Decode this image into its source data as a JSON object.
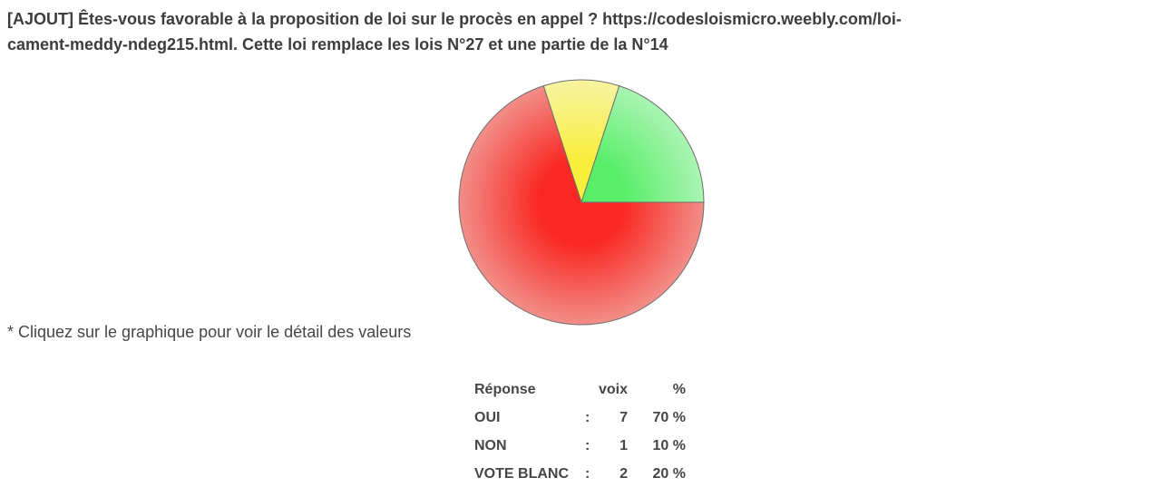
{
  "page": {
    "background": "#ffffff"
  },
  "header": {
    "title_lines": [
      "[AJOUT] Êtes-vous favorable à la proposition de loi sur le procès en appel ? https://codesloismicro.weebly.com/loi-",
      "cament-meddy-ndeg215.html. Cette loi remplace les lois N°27 et une partie de la N°14"
    ]
  },
  "note": "* Cliquez sur le graphique pour voir le détail des valeurs",
  "results_table": {
    "headers": {
      "label": "Réponse",
      "voix": "voix",
      "pct": "%"
    },
    "rows": [
      {
        "label": "OUI",
        "sep": ":",
        "voix": "7",
        "pct": "70 %"
      },
      {
        "label": "NON",
        "sep": ":",
        "voix": "1",
        "pct": "10 %"
      },
      {
        "label": "VOTE BLANC",
        "sep": ":",
        "voix": "2",
        "pct": "20 %"
      }
    ]
  },
  "chart_data": {
    "type": "pie",
    "title": "",
    "labels": [
      "OUI",
      "NON",
      "VOTE BLANC"
    ],
    "values": [
      70,
      10,
      20
    ],
    "votes": [
      7,
      1,
      2
    ],
    "total_votes": 10,
    "start_angle_deg": 0,
    "direction": "clockwise",
    "legend_position": "none",
    "stroke_color": "#6e6e6e",
    "slices": [
      {
        "label": "OUI",
        "votes": 7,
        "percent": 70,
        "color_center": "#fa2823",
        "color_edge": "#f28e88"
      },
      {
        "label": "NON",
        "votes": 1,
        "percent": 10,
        "color_center": "#f8ee3c",
        "color_edge": "#f7f3a0"
      },
      {
        "label": "VOTE BLANC",
        "votes": 2,
        "percent": 20,
        "color_center": "#58ee68",
        "color_edge": "#aaf4b2"
      }
    ]
  }
}
